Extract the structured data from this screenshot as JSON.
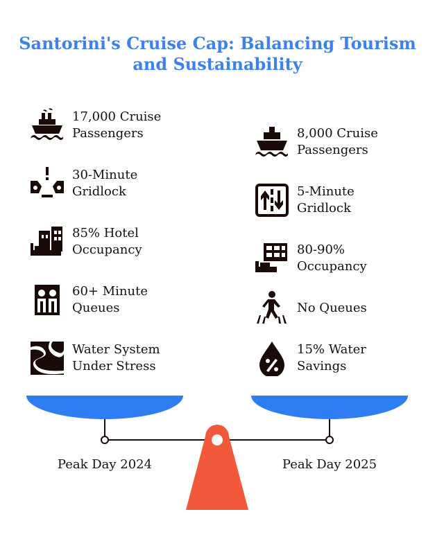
{
  "title": "Santorini's Cruise Cap: Balancing Tourism and Sustainability",
  "left": {
    "caption": "Peak Day 2024",
    "items": [
      {
        "icon": "cruise-ship-smoke-icon",
        "label": "17,000 Cruise\nPassengers"
      },
      {
        "icon": "traffic-jam-icon",
        "label": "30-Minute\nGridlock"
      },
      {
        "icon": "hotel-bed-icon",
        "label": "85% Hotel\nOccupancy"
      },
      {
        "icon": "queue-people-icon",
        "label": "60+ Minute\nQueues"
      },
      {
        "icon": "water-stress-icon",
        "label": "Water System\nUnder Stress"
      }
    ]
  },
  "right": {
    "caption": "Peak Day 2025",
    "items": [
      {
        "icon": "cruise-ship-icon",
        "label": "8,000 Cruise\nPassengers"
      },
      {
        "icon": "road-lanes-icon",
        "label": "5-Minute\nGridlock"
      },
      {
        "icon": "building-bed-icon",
        "label": "80-90%\nOccupancy"
      },
      {
        "icon": "walking-person-icon",
        "label": "No Queues"
      },
      {
        "icon": "water-drop-percent-icon",
        "label": "15% Water\nSavings"
      }
    ]
  },
  "colors": {
    "title": "#3d82ec",
    "pan": "#2f7df2",
    "fulcrum": "#f2583a",
    "ink": "#1a0a08"
  }
}
